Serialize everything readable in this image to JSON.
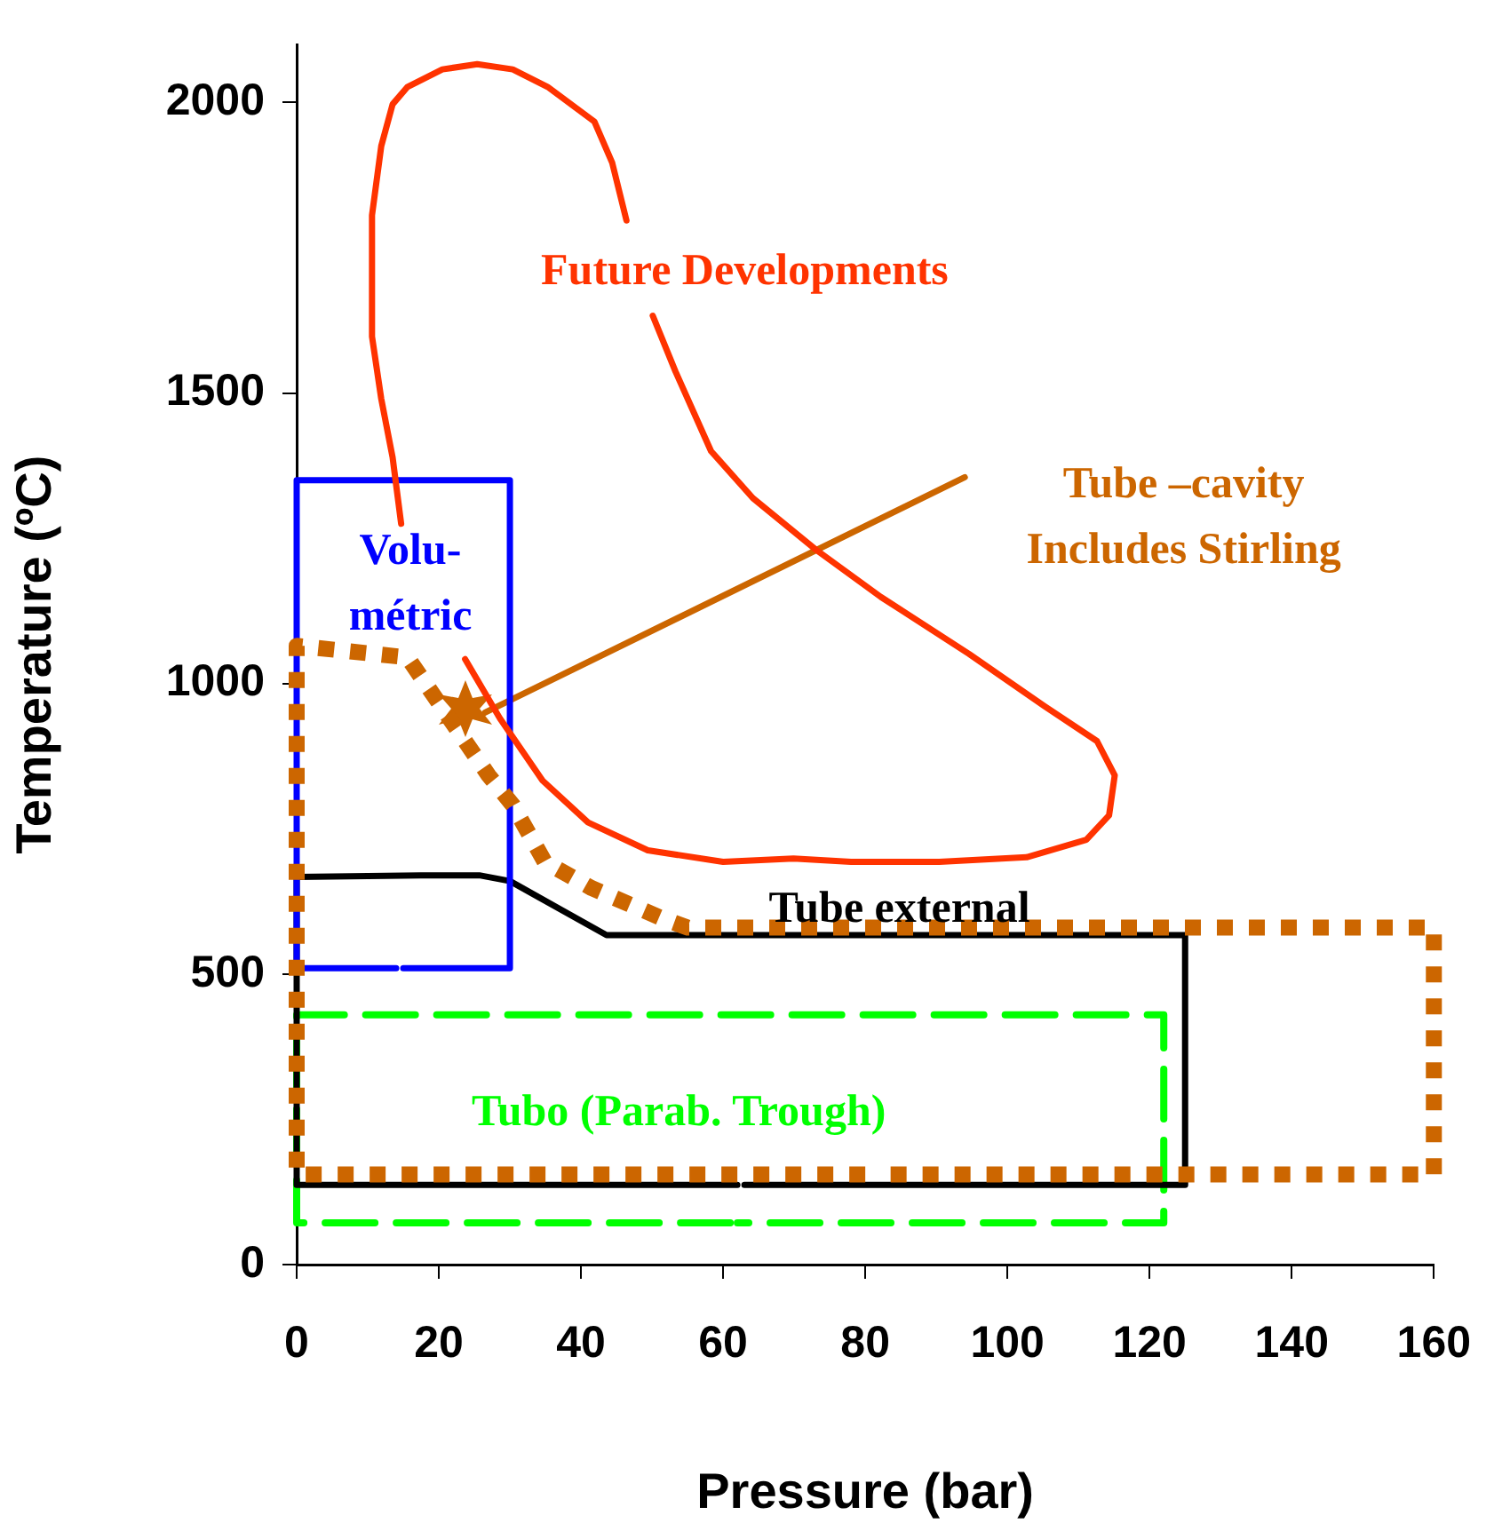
{
  "chart_data": {
    "type": "line",
    "xlabel": "Pressure (bar)",
    "ylabel": "Temperature (ºC)",
    "xlim": [
      0,
      160
    ],
    "xticks": [
      0,
      20,
      40,
      60,
      80,
      100,
      120,
      140,
      160
    ],
    "ylim": [
      0,
      2100
    ],
    "yticks": [
      0,
      500,
      1000,
      1500,
      2000
    ],
    "grid": false,
    "legend": false,
    "marker": "none",
    "series": [
      {
        "color": "#cc6600",
        "line_style": "dotted",
        "x": [
          80,
          0,
          0,
          15.6,
          27,
          30.4,
          34.9,
          41.5,
          51.2,
          55,
          160,
          160,
          82
        ],
        "values": [
          155,
          155,
          1065,
          1045,
          842,
          791,
          693,
          648,
          597,
          580,
          580,
          155,
          155
        ]
      },
      {
        "color": "#ff3300",
        "line_style": "solid",
        "x": [
          14.7,
          13.5,
          11.9,
          10.6,
          10.6,
          11.9,
          13.5,
          15.6,
          20.5,
          25.4,
          30.4,
          35.3,
          41.9,
          44.4,
          46.4,
          null,
          50.1,
          53.3,
          58.3,
          64.2,
          73.1,
          82.2,
          94.6,
          105.2,
          112.6,
          115.1,
          114.3,
          111.1,
          102.7,
          90.4,
          78,
          69.9,
          60,
          49.4,
          41,
          34.6,
          28.6,
          23.7
        ],
        "values": [
          1275,
          1389,
          1490,
          1597,
          1806,
          1925,
          1997,
          2027,
          2057,
          2066,
          2057,
          2027,
          1967,
          1896,
          1797,
          null,
          1633,
          1537,
          1400,
          1319,
          1230,
          1149,
          1051,
          961,
          901,
          842,
          773,
          731,
          701,
          693,
          693,
          699,
          693,
          713,
          761,
          833,
          940,
          1042
        ]
      },
      {
        "color": "#0000ff",
        "line_style": "solid",
        "x": [
          15,
          30,
          30,
          0,
          0,
          14
        ],
        "values": [
          510,
          510,
          1350,
          1350,
          510,
          510
        ]
      },
      {
        "color": "#000000",
        "line_style": "solid",
        "x": [
          62,
          0,
          0,
          17.5,
          25.7,
          30,
          43.6,
          125,
          125,
          63
        ],
        "values": [
          137,
          137,
          667,
          670,
          670,
          660,
          567,
          567,
          137,
          137
        ]
      },
      {
        "color": "#00ff00",
        "line_style": "dashed",
        "x": [
          61,
          0,
          0,
          122,
          122,
          62
        ],
        "values": [
          72,
          72,
          430,
          430,
          72,
          72
        ]
      },
      {
        "color": "#cc6600",
        "line_style": "solid",
        "x": [
          26.5,
          94
        ],
        "values": [
          950,
          1355
        ]
      }
    ],
    "annotations": [
      "Tube –cavity\nIncludes Stirling",
      "Future Developments",
      "Volu-\nmétric",
      "Tube external",
      "Tubo (Parab. Trough)"
    ]
  }
}
